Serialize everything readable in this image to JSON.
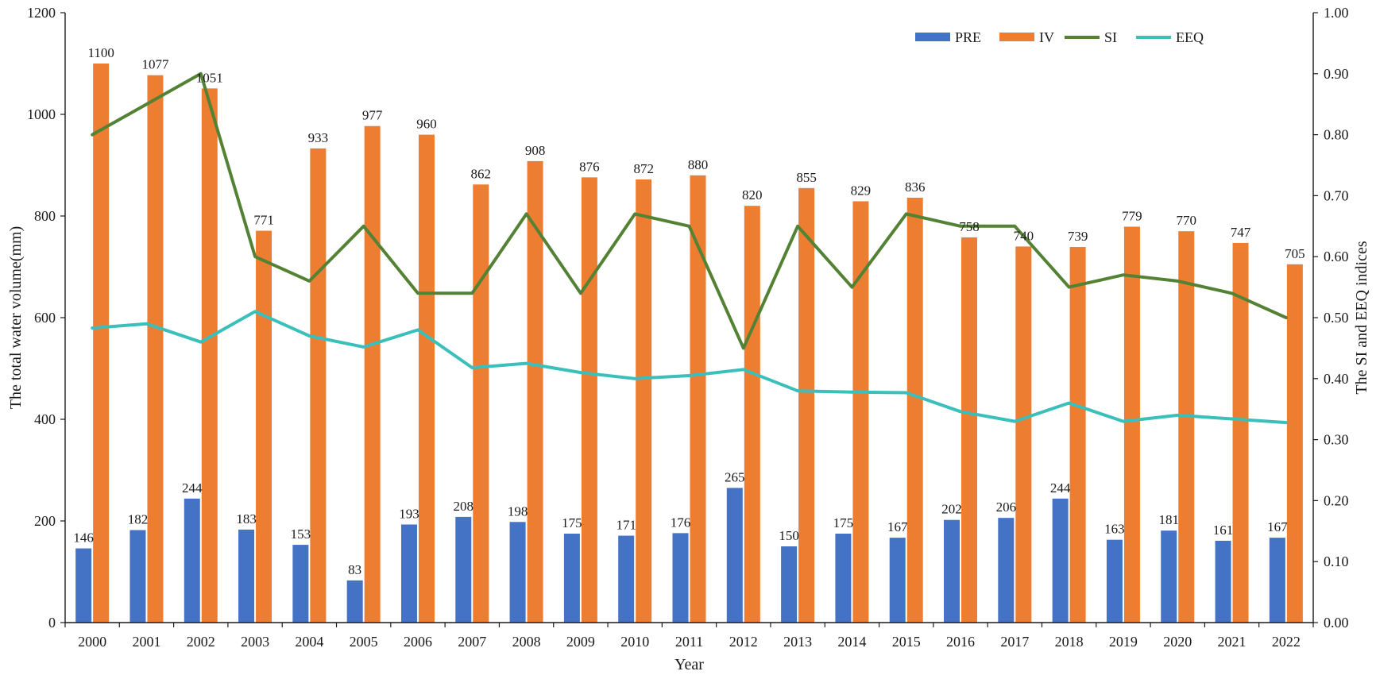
{
  "chart_data": {
    "type": "bar",
    "categories": [
      "2000",
      "2001",
      "2002",
      "2003",
      "2004",
      "2005",
      "2006",
      "2007",
      "2008",
      "2009",
      "2010",
      "2011",
      "2012",
      "2013",
      "2014",
      "2015",
      "2016",
      "2017",
      "2018",
      "2019",
      "2020",
      "2021",
      "2022"
    ],
    "series": [
      {
        "name": "PRE",
        "kind": "bar",
        "axis": "left",
        "color": "#4472C4",
        "values": [
          146,
          182,
          244,
          183,
          153,
          83,
          193,
          208,
          198,
          175,
          171,
          176,
          265,
          150,
          175,
          167,
          202,
          206,
          244,
          163,
          181,
          161,
          167
        ]
      },
      {
        "name": "IV",
        "kind": "bar",
        "axis": "left",
        "color": "#ED7D31",
        "values": [
          1100,
          1077,
          1051,
          771,
          933,
          977,
          960,
          862,
          908,
          876,
          872,
          880,
          820,
          855,
          829,
          836,
          758,
          740,
          739,
          779,
          770,
          747,
          705
        ]
      },
      {
        "name": "SI",
        "kind": "line",
        "axis": "right",
        "color": "#548235",
        "values": [
          0.8,
          0.85,
          0.9,
          0.6,
          0.56,
          0.65,
          0.54,
          0.54,
          0.67,
          0.54,
          0.67,
          0.65,
          0.45,
          0.65,
          0.55,
          0.67,
          0.65,
          0.65,
          0.55,
          0.57,
          0.56,
          0.54,
          0.5
        ]
      },
      {
        "name": "EEQ",
        "kind": "line",
        "axis": "right",
        "color": "#3BBFBA",
        "values": [
          0.483,
          0.49,
          0.46,
          0.51,
          0.47,
          0.452,
          0.48,
          0.418,
          0.425,
          0.41,
          0.4,
          0.405,
          0.415,
          0.38,
          0.378,
          0.377,
          0.346,
          0.33,
          0.36,
          0.33,
          0.34,
          0.334,
          0.328
        ]
      }
    ],
    "xlabel": "Year",
    "ylabel": "The total water volume(mm)",
    "y2label": "The SI and EEQ indices",
    "ylim": [
      0,
      1200
    ],
    "y2lim": [
      0,
      1.0
    ],
    "yticks": [
      "0",
      "200",
      "400",
      "600",
      "800",
      "1000",
      "1200"
    ],
    "y2ticks": [
      "0.00",
      "0.10",
      "0.20",
      "0.30",
      "0.40",
      "0.50",
      "0.60",
      "0.70",
      "0.80",
      "0.90",
      "1.00"
    ],
    "legend": {
      "position": "top-right",
      "entries": [
        "PRE",
        "IV",
        "SI",
        "EEQ"
      ]
    },
    "grid": false
  }
}
